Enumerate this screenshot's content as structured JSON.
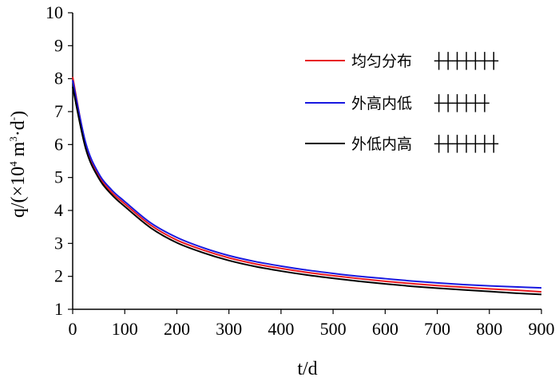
{
  "chart_data": {
    "type": "line",
    "title": "",
    "xlabel": "t/d",
    "ylabel_parts": {
      "prefix": "q/(×10",
      "sup1": "4",
      "mid": " m",
      "sup2": "3",
      "mid2": "·d",
      "sup3": "-",
      "suffix": ")"
    },
    "xlim": [
      0,
      900
    ],
    "ylim": [
      1,
      10
    ],
    "x_ticks": [
      0,
      100,
      200,
      300,
      400,
      500,
      600,
      700,
      800,
      900
    ],
    "y_ticks": [
      1,
      2,
      3,
      4,
      5,
      6,
      7,
      8,
      9,
      10
    ],
    "grid": false,
    "legend_position": "top-right",
    "x": [
      0,
      25,
      50,
      75,
      100,
      150,
      200,
      250,
      300,
      350,
      400,
      450,
      500,
      550,
      600,
      650,
      700,
      750,
      800,
      850,
      900
    ],
    "series": [
      {
        "name": "均匀分布",
        "color": "#e8191f",
        "pattern_label": "┼┼┼┼┼┼┼",
        "values": [
          8.05,
          6.0,
          5.05,
          4.55,
          4.2,
          3.55,
          3.1,
          2.8,
          2.56,
          2.38,
          2.24,
          2.12,
          2.02,
          1.93,
          1.85,
          1.78,
          1.72,
          1.67,
          1.62,
          1.58,
          1.53
        ]
      },
      {
        "name": "外高内低",
        "color": "#1818e0",
        "pattern_label": "┼┼┼┼┼┼",
        "values": [
          7.95,
          6.05,
          5.12,
          4.62,
          4.27,
          3.62,
          3.18,
          2.87,
          2.63,
          2.45,
          2.31,
          2.19,
          2.09,
          2.0,
          1.93,
          1.86,
          1.8,
          1.75,
          1.71,
          1.68,
          1.65
        ]
      },
      {
        "name": "外低内高",
        "color": "#000000",
        "pattern_label": "┼┼┼┼┼┼┼",
        "values": [
          7.75,
          5.88,
          4.98,
          4.48,
          4.12,
          3.47,
          3.02,
          2.72,
          2.48,
          2.3,
          2.16,
          2.04,
          1.94,
          1.85,
          1.77,
          1.7,
          1.64,
          1.59,
          1.54,
          1.49,
          1.45
        ]
      }
    ]
  }
}
